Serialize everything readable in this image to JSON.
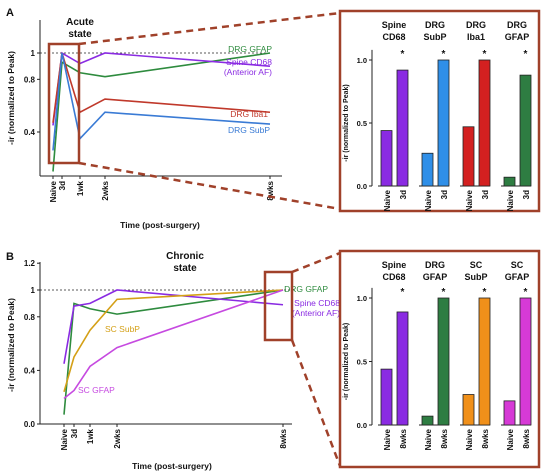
{
  "chart_data": [
    {
      "panel": "A",
      "type": "line",
      "title": "Acute state",
      "xlabel": "Time (post-surgery)",
      "ylabel": "-ir (normalized to Peak)",
      "x_ticks": [
        "Naive",
        "3d",
        "1wk",
        "2wks",
        "8wks"
      ],
      "y_ticks": [
        "0.4",
        "0.8",
        "1"
      ],
      "reference_line": 1,
      "series": [
        {
          "name": "DRG GFAP",
          "color": "#2e8b3e",
          "values": [
            0.1,
            0.93,
            0.85,
            0.82,
            1.0
          ]
        },
        {
          "name": "Spine CD68 (Anterior AF)",
          "color": "#8a2be2",
          "values": [
            0.45,
            1.0,
            0.92,
            1.0,
            0.9
          ]
        },
        {
          "name": "DRG Iba1",
          "color": "#c0392b",
          "values": [
            0.47,
            1.0,
            0.55,
            0.65,
            0.55
          ]
        },
        {
          "name": "DRG SubP",
          "color": "#3a7bd5",
          "values": [
            0.26,
            1.0,
            0.35,
            0.55,
            0.46
          ]
        }
      ]
    },
    {
      "panel": "A-inset",
      "type": "bar",
      "ylabel": "-ir (normalized to Peak)",
      "y_ticks": [
        "0.0",
        "0.5",
        "1.0"
      ],
      "groups": [
        {
          "label": "Spine CD68",
          "color": "#8a2be2",
          "categories": [
            "Naive",
            "3d"
          ],
          "values": [
            0.44,
            0.92
          ],
          "marker": "*"
        },
        {
          "label": "DRG SubP",
          "color": "#2f8fe8",
          "categories": [
            "Naive",
            "3d"
          ],
          "values": [
            0.26,
            1.0
          ],
          "marker": "*"
        },
        {
          "label": "DRG Iba1",
          "color": "#d32020",
          "categories": [
            "Naive",
            "3d"
          ],
          "values": [
            0.47,
            1.0
          ],
          "marker": "*"
        },
        {
          "label": "DRG GFAP",
          "color": "#2e7d42",
          "categories": [
            "Naive",
            "3d"
          ],
          "values": [
            0.07,
            0.88
          ],
          "marker": "*"
        }
      ]
    },
    {
      "panel": "B",
      "type": "line",
      "title": "Chronic state",
      "xlabel": "Time (post-surgery)",
      "ylabel": "-ir (normalized to Peak)",
      "x_ticks": [
        "Naive",
        "3d",
        "1wk",
        "2wks",
        "8wks"
      ],
      "y_ticks": [
        "0.0",
        "0.4",
        "0.8",
        "1",
        "1.2"
      ],
      "reference_line": 1,
      "series": [
        {
          "name": "DRG GFAP",
          "color": "#2e8b3e",
          "values": [
            0.07,
            0.9,
            0.86,
            0.82,
            1.0
          ]
        },
        {
          "name": "Spine CD68 (Anterior AF)",
          "color": "#8a2be2",
          "values": [
            0.45,
            0.88,
            0.9,
            1.0,
            0.89
          ]
        },
        {
          "name": "SC SubP",
          "color": "#d4a017",
          "values": [
            0.24,
            0.5,
            0.7,
            0.93,
            1.0
          ]
        },
        {
          "name": "SC GFAP",
          "color": "#c64ae0",
          "values": [
            0.19,
            0.25,
            0.43,
            0.57,
            1.0
          ]
        }
      ]
    },
    {
      "panel": "B-inset",
      "type": "bar",
      "ylabel": "-ir (normalized to Peak)",
      "y_ticks": [
        "0.0",
        "0.5",
        "1.0"
      ],
      "groups": [
        {
          "label": "Spine CD68",
          "color": "#8a2be2",
          "categories": [
            "Naive",
            "8wks"
          ],
          "values": [
            0.44,
            0.89
          ],
          "marker": "*"
        },
        {
          "label": "DRG GFAP",
          "color": "#2e7d42",
          "categories": [
            "Naive",
            "8wks"
          ],
          "values": [
            0.07,
            1.0
          ],
          "marker": "*"
        },
        {
          "label": "SC SubP",
          "color": "#f0901a",
          "categories": [
            "Naive",
            "8wks"
          ],
          "values": [
            0.24,
            1.0
          ],
          "marker": "*"
        },
        {
          "label": "SC GFAP",
          "color": "#d63ad6",
          "categories": [
            "Naive",
            "8wks"
          ],
          "values": [
            0.19,
            1.0
          ],
          "marker": "*"
        }
      ]
    }
  ],
  "panel_labels": {
    "a": "A",
    "b": "B"
  },
  "highlight_color": "#a0412a"
}
